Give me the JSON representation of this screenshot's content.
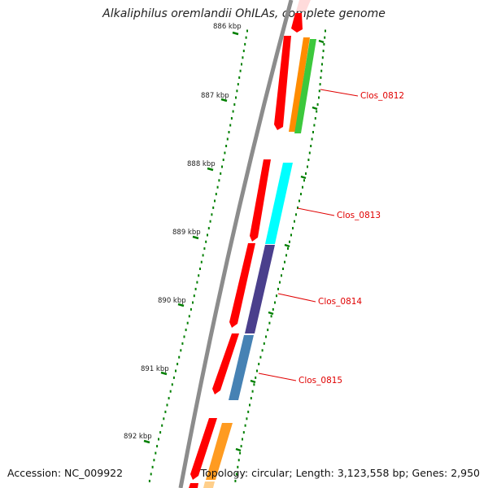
{
  "title": "Alkaliphilus oremlandii OhILAs, complete genome",
  "footer": {
    "accession": "Accession: NC_009922",
    "summary": "Topology: circular; Length: 3,123,558 bp; Genes: 2,950"
  },
  "colors": {
    "backbone": "#8c8c8c",
    "cds": "#ff0000",
    "tick": "#007f00",
    "label": "#e00000",
    "orange": "#ff8c00",
    "green": "#3cc83c",
    "cyan": "#00ffff",
    "purple": "#4a3f8c",
    "steelblue": "#4682b4",
    "light_orange": "#ffa640"
  },
  "ticks": [
    {
      "label": "886 kbp",
      "pos_kbp": 886
    },
    {
      "label": "887 kbp",
      "pos_kbp": 887
    },
    {
      "label": "888 kbp",
      "pos_kbp": 888
    },
    {
      "label": "889 kbp",
      "pos_kbp": 889
    },
    {
      "label": "890 kbp",
      "pos_kbp": 890
    },
    {
      "label": "891 kbp",
      "pos_kbp": 891
    },
    {
      "label": "892 kbp",
      "pos_kbp": 892
    }
  ],
  "genes": [
    {
      "label": "Clos_0812"
    },
    {
      "label": "Clos_0813"
    },
    {
      "label": "Clos_0814"
    },
    {
      "label": "Clos_0815"
    }
  ]
}
